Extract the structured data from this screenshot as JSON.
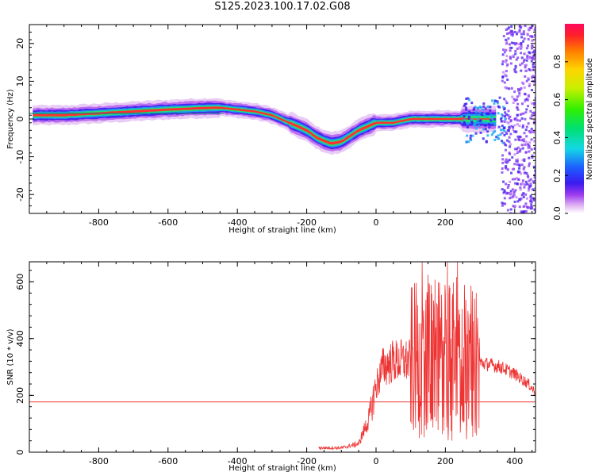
{
  "title": "S125.2023.100.17.02.G08",
  "chart_data": [
    {
      "type": "heatmap",
      "xlabel": "Height of straight line (km)",
      "ylabel": "Frequency (Hz)",
      "xlim": [
        -1000,
        460
      ],
      "ylim": [
        -25,
        25
      ],
      "xticks": [
        -800,
        -600,
        -400,
        -200,
        0,
        200,
        400
      ],
      "yticks": [
        -20,
        -10,
        0,
        10,
        20
      ],
      "reference_line_y": 1.5,
      "grid": false,
      "ridge": {
        "x": [
          -990,
          -900,
          -800,
          -700,
          -600,
          -520,
          -450,
          -400,
          -350,
          -300,
          -250,
          -200,
          -170,
          -130,
          -100,
          -50,
          0,
          50,
          100,
          150,
          200,
          250,
          300,
          350
        ],
        "y": [
          1,
          1,
          1.5,
          2,
          2.5,
          2.8,
          3,
          2.5,
          2,
          1,
          -1,
          -3,
          -5,
          -6.5,
          -6,
          -3,
          -1,
          -1,
          0,
          0,
          0,
          0,
          0,
          0
        ]
      },
      "colorbar": {
        "label": "Normalized spectral amplitude",
        "ticks": [
          "0.0",
          "0.2",
          "0.4",
          "0.6",
          "0.8"
        ],
        "range": [
          0,
          1
        ]
      }
    },
    {
      "type": "line",
      "xlabel": "Height of straight line (km)",
      "ylabel": "SNR (10 * v/v)",
      "xlim": [
        -1000,
        460
      ],
      "ylim": [
        0,
        670
      ],
      "xticks": [
        -800,
        -600,
        -400,
        -200,
        0,
        200,
        400
      ],
      "yticks": [
        0,
        200,
        400,
        600
      ],
      "reference_line_y": 177,
      "line_color": "#ee3333",
      "envelope": {
        "x": [
          -165,
          -100,
          -50,
          -20,
          0,
          20,
          50,
          100,
          150,
          200,
          240,
          280,
          320,
          360,
          400,
          440,
          460
        ],
        "y": [
          15,
          15,
          30,
          120,
          230,
          300,
          320,
          320,
          330,
          330,
          330,
          320,
          310,
          300,
          275,
          240,
          210
        ]
      }
    }
  ]
}
